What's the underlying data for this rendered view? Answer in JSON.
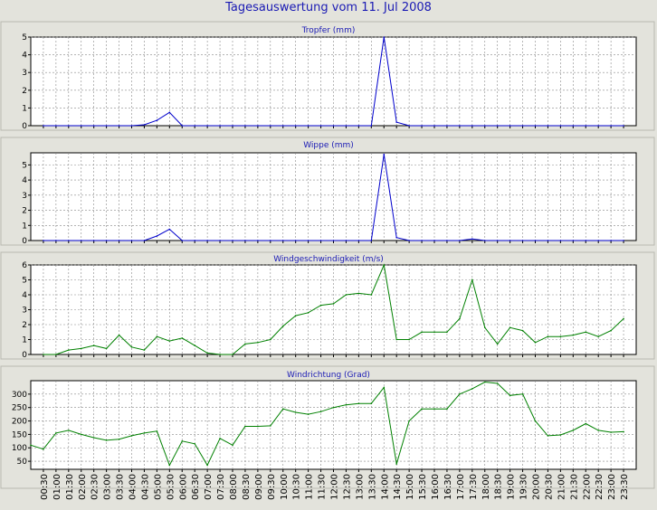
{
  "title": "Tagesauswertung vom 11. Jul 2008",
  "x_tick_labels": [
    "00:30",
    "01:00",
    "01:30",
    "02:00",
    "02:30",
    "03:00",
    "03:30",
    "04:00",
    "04:30",
    "05:00",
    "05:30",
    "06:00",
    "06:30",
    "07:00",
    "07:30",
    "08:00",
    "08:30",
    "09:00",
    "09:30",
    "10:00",
    "10:30",
    "11:00",
    "11:30",
    "12:00",
    "12:30",
    "13:00",
    "13:30",
    "14:00",
    "14:30",
    "15:00",
    "15:30",
    "16:00",
    "16:30",
    "17:00",
    "17:30",
    "18:00",
    "18:30",
    "19:00",
    "19:30",
    "20:00",
    "20:30",
    "21:00",
    "21:30",
    "22:00",
    "22:30",
    "23:00",
    "23:30"
  ],
  "colors": {
    "blue_series": "#0000cc",
    "green_series": "#008000",
    "grid": "#888888",
    "title_text": "#1a1ab4",
    "plot_bg": "#ffffff",
    "page_bg": "#e3e3dc"
  },
  "chart_data": [
    {
      "type": "line",
      "title": "Tropfer (mm)",
      "color": "#0000cc",
      "ylim": [
        0,
        5
      ],
      "yticks": [
        0,
        1,
        2,
        3,
        4,
        5
      ],
      "grid": true,
      "x": [
        "00:30",
        "01:00",
        "01:30",
        "02:00",
        "02:30",
        "03:00",
        "03:30",
        "04:00",
        "04:30",
        "05:00",
        "05:30",
        "06:00",
        "06:30",
        "07:00",
        "07:30",
        "08:00",
        "08:30",
        "09:00",
        "09:30",
        "10:00",
        "10:30",
        "11:00",
        "11:30",
        "12:00",
        "12:30",
        "13:00",
        "13:30",
        "14:00",
        "14:30",
        "15:00",
        "15:30",
        "16:00",
        "16:30",
        "17:00",
        "17:30",
        "18:00",
        "18:30",
        "19:00",
        "19:30",
        "20:00",
        "20:30",
        "21:00",
        "21:30",
        "22:00",
        "22:30",
        "23:00",
        "23:30"
      ],
      "values": [
        0,
        0,
        0,
        0,
        0,
        0,
        0,
        0,
        0.05,
        0.3,
        0.75,
        0,
        0,
        0,
        0,
        0,
        0,
        0,
        0,
        0,
        0,
        0,
        0,
        0,
        0,
        0,
        0,
        5.0,
        0.2,
        0,
        0,
        0,
        0,
        0,
        0,
        0,
        0,
        0,
        0,
        0,
        0,
        0,
        0,
        0,
        0,
        0,
        0
      ]
    },
    {
      "type": "line",
      "title": "Wippe (mm)",
      "color": "#0000cc",
      "ylim": [
        0,
        5.8
      ],
      "yticks": [
        0,
        1,
        2,
        3,
        4,
        5
      ],
      "grid": true,
      "x": [
        "00:30",
        "01:00",
        "01:30",
        "02:00",
        "02:30",
        "03:00",
        "03:30",
        "04:00",
        "04:30",
        "05:00",
        "05:30",
        "06:00",
        "06:30",
        "07:00",
        "07:30",
        "08:00",
        "08:30",
        "09:00",
        "09:30",
        "10:00",
        "10:30",
        "11:00",
        "11:30",
        "12:00",
        "12:30",
        "13:00",
        "13:30",
        "14:00",
        "14:30",
        "15:00",
        "15:30",
        "16:00",
        "16:30",
        "17:00",
        "17:30",
        "18:00",
        "18:30",
        "19:00",
        "19:30",
        "20:00",
        "20:30",
        "21:00",
        "21:30",
        "22:00",
        "22:30",
        "23:00",
        "23:30"
      ],
      "values": [
        0,
        0,
        0,
        0,
        0,
        0,
        0,
        0,
        0,
        0.3,
        0.75,
        0,
        0,
        0,
        0,
        0,
        0,
        0,
        0,
        0,
        0,
        0,
        0,
        0,
        0,
        0,
        0,
        5.7,
        0.2,
        0,
        0,
        0,
        0,
        0,
        0.1,
        0,
        0,
        0,
        0,
        0,
        0,
        0,
        0,
        0,
        0,
        0,
        0
      ]
    },
    {
      "type": "line",
      "title": "Windgeschwindigkeit (m/s)",
      "color": "#008000",
      "ylim": [
        0,
        6
      ],
      "yticks": [
        0,
        1,
        2,
        3,
        4,
        5,
        6
      ],
      "grid": true,
      "x": [
        "00:30",
        "01:00",
        "01:30",
        "02:00",
        "02:30",
        "03:00",
        "03:30",
        "04:00",
        "04:30",
        "05:00",
        "05:30",
        "06:00",
        "06:30",
        "07:00",
        "07:30",
        "08:00",
        "08:30",
        "09:00",
        "09:30",
        "10:00",
        "10:30",
        "11:00",
        "11:30",
        "12:00",
        "12:30",
        "13:00",
        "13:30",
        "14:00",
        "14:30",
        "15:00",
        "15:30",
        "16:00",
        "16:30",
        "17:00",
        "17:30",
        "18:00",
        "18:30",
        "19:00",
        "19:30",
        "20:00",
        "20:30",
        "21:00",
        "21:30",
        "22:00",
        "22:30",
        "23:00",
        "23:30"
      ],
      "values": [
        0,
        0,
        0.3,
        0.4,
        0.6,
        0.4,
        1.3,
        0.5,
        0.3,
        1.2,
        0.9,
        1.1,
        0.6,
        0.1,
        0,
        0,
        0.7,
        0.8,
        1.0,
        1.9,
        2.6,
        2.8,
        3.3,
        3.4,
        4.0,
        4.1,
        4.0,
        6.0,
        1.0,
        1.0,
        1.5,
        1.5,
        1.5,
        2.4,
        5.0,
        1.8,
        0.7,
        1.8,
        1.6,
        0.8,
        1.2,
        1.2,
        1.3,
        1.5,
        1.2,
        1.6,
        2.4
      ]
    },
    {
      "type": "line",
      "title": "Windrichtung (Grad)",
      "color": "#008000",
      "ylim": [
        20,
        350
      ],
      "yticks": [
        50,
        100,
        150,
        200,
        250,
        300
      ],
      "grid": true,
      "x": [
        "00:00",
        "00:30",
        "01:00",
        "01:30",
        "02:00",
        "02:30",
        "03:00",
        "03:30",
        "04:00",
        "04:30",
        "05:00",
        "05:30",
        "06:00",
        "06:30",
        "07:00",
        "07:30",
        "08:00",
        "08:30",
        "09:00",
        "09:30",
        "10:00",
        "10:30",
        "11:00",
        "11:30",
        "12:00",
        "12:30",
        "13:00",
        "13:30",
        "14:00",
        "14:30",
        "15:00",
        "15:30",
        "16:00",
        "16:30",
        "17:00",
        "17:30",
        "18:00",
        "18:30",
        "19:00",
        "19:30",
        "20:00",
        "20:30",
        "21:00",
        "21:30",
        "22:00",
        "22:30",
        "23:00",
        "23:30"
      ],
      "values": [
        110,
        95,
        155,
        165,
        150,
        138,
        128,
        132,
        145,
        155,
        162,
        35,
        125,
        115,
        35,
        135,
        110,
        180,
        180,
        182,
        245,
        232,
        225,
        235,
        250,
        260,
        265,
        265,
        325,
        40,
        200,
        245,
        245,
        245,
        300,
        320,
        345,
        340,
        295,
        300,
        200,
        145,
        148,
        165,
        190,
        165,
        158,
        160
      ]
    }
  ]
}
